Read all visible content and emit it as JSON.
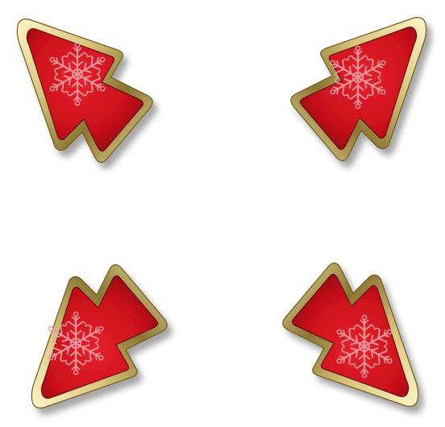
{
  "scene": {
    "background": "#ffffff",
    "arrows": [
      {
        "direction": "up-left",
        "icon": "snowflake-icon"
      },
      {
        "direction": "up-right",
        "icon": "snowflake-icon"
      },
      {
        "direction": "down-left",
        "icon": "snowflake-icon"
      },
      {
        "direction": "down-right",
        "icon": "snowflake-icon"
      }
    ]
  },
  "colors": {
    "red_light": "#e8202a",
    "red_mid": "#c8101a",
    "red_dark": "#7a0008",
    "gold_light": "#fff6c8",
    "gold_mid": "#d8c47a",
    "gold_dark": "#6e5a20",
    "snowflake": "#e8a0a6"
  }
}
